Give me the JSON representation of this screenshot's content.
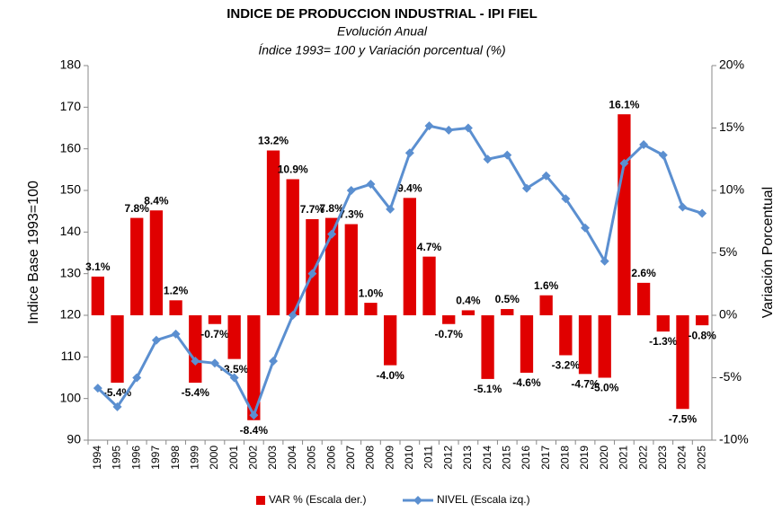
{
  "chart_data": {
    "type": "bar-line",
    "title": "INDICE DE PRODUCCION INDUSTRIAL - IPI FIEL",
    "subtitle": "Evolución Anual",
    "subtitle2": "Índice 1993= 100 y Variación porcentual (%)",
    "ylabel": "Indice Base 1993=100",
    "y2label": "Variación Porcentual",
    "categories": [
      "1994",
      "1995",
      "1996",
      "1997",
      "1998",
      "1999",
      "2000",
      "2001",
      "2002",
      "2003",
      "2004",
      "2005",
      "2006",
      "2007",
      "2008",
      "2009",
      "2010",
      "2011",
      "2012",
      "2013",
      "2014",
      "2015",
      "2016",
      "2017",
      "2018",
      "2019",
      "2020",
      "2021",
      "2022",
      "2023",
      "2024",
      "2025"
    ],
    "series": [
      {
        "name": "VAR % (Escala der.)",
        "color": "#e00000",
        "axis": "y2",
        "kind": "bar",
        "values": [
          3.1,
          -5.4,
          7.8,
          8.4,
          1.2,
          -5.4,
          -0.7,
          -3.5,
          -8.4,
          13.2,
          10.9,
          7.7,
          7.8,
          7.3,
          1.0,
          -4.0,
          9.4,
          4.7,
          -0.7,
          0.4,
          -5.1,
          0.5,
          -4.6,
          1.6,
          -3.2,
          -4.7,
          -5.0,
          16.1,
          2.6,
          -1.3,
          -7.5,
          -0.8
        ],
        "value_labels": [
          "3.1%",
          "-5.4%",
          "7.8%",
          "8.4%",
          "1.2%",
          "-5.4%",
          "-0.7%",
          "-3.5%",
          "-8.4%",
          "13.2%",
          "10.9%",
          "7.7%",
          "7.8%",
          "7.3%",
          "1.0%",
          "-4.0%",
          "9.4%",
          "4.7%",
          "-0.7%",
          "0.4%",
          "-5.1%",
          "0.5%",
          "-4.6%",
          "1.6%",
          "-3.2%",
          "-4.7%",
          "-5.0%",
          "16.1%",
          "2.6%",
          "-1.3%",
          "-7.5%",
          "-0.8%"
        ]
      },
      {
        "name": "NIVEL (Escala izq.)",
        "color": "#5b8fd0",
        "axis": "y",
        "kind": "line",
        "values": [
          102.5,
          98,
          105,
          114,
          115.5,
          109,
          108.5,
          105,
          96,
          109,
          120,
          130,
          139.5,
          150,
          151.5,
          145.5,
          159,
          165.5,
          164.5,
          165,
          157.5,
          158.5,
          150.5,
          153.5,
          148,
          141,
          133,
          156.5,
          161,
          158.5,
          146,
          144.5
        ]
      }
    ],
    "ylim": [
      90,
      180
    ],
    "yticks": [
      90,
      100,
      110,
      120,
      130,
      140,
      150,
      160,
      170,
      180
    ],
    "y2lim": [
      -10,
      20
    ],
    "y2ticks": [
      {
        "value": -10,
        "label": "-10%"
      },
      {
        "value": -5,
        "label": "-5%"
      },
      {
        "value": 0,
        "label": "0%"
      },
      {
        "value": 5,
        "label": "5%"
      },
      {
        "value": 10,
        "label": "10%"
      },
      {
        "value": 15,
        "label": "15%"
      },
      {
        "value": 20,
        "label": "20%"
      }
    ],
    "grid": false,
    "legend": "bottom"
  }
}
